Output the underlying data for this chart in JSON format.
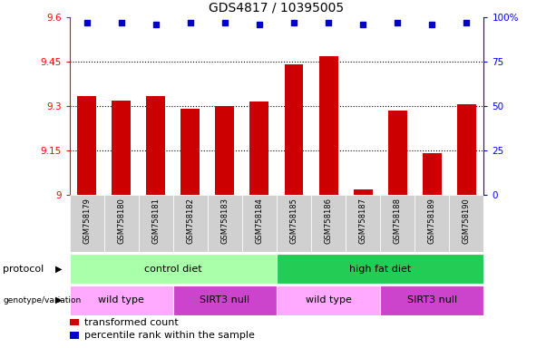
{
  "title": "GDS4817 / 10395005",
  "samples": [
    "GSM758179",
    "GSM758180",
    "GSM758181",
    "GSM758182",
    "GSM758183",
    "GSM758184",
    "GSM758185",
    "GSM758186",
    "GSM758187",
    "GSM758188",
    "GSM758189",
    "GSM758190"
  ],
  "bar_values": [
    9.335,
    9.32,
    9.335,
    9.29,
    9.3,
    9.315,
    9.44,
    9.47,
    9.02,
    9.285,
    9.14,
    9.305
  ],
  "percentile_values": [
    97,
    97,
    96,
    97,
    97,
    96,
    97,
    97,
    96,
    97,
    96,
    97
  ],
  "ylim_left": [
    9.0,
    9.6
  ],
  "yticks_left": [
    9.0,
    9.15,
    9.3,
    9.45,
    9.6
  ],
  "ytick_labels_left": [
    "9",
    "9.15",
    "9.3",
    "9.45",
    "9.6"
  ],
  "ylim_right": [
    0,
    100
  ],
  "yticks_right": [
    0,
    25,
    50,
    75,
    100
  ],
  "ytick_labels_right": [
    "0",
    "25",
    "50",
    "75",
    "100%"
  ],
  "bar_color": "#cc0000",
  "dot_color": "#0000cc",
  "bar_bottom": 9.0,
  "hline_values": [
    9.15,
    9.3,
    9.45
  ],
  "protocol_groups": [
    {
      "text": "control diet",
      "start": 0,
      "end": 6,
      "color": "#aaffaa"
    },
    {
      "text": "high fat diet",
      "start": 6,
      "end": 12,
      "color": "#22cc55"
    }
  ],
  "genotype_groups": [
    {
      "text": "wild type",
      "start": 0,
      "end": 3,
      "color": "#ffaaff"
    },
    {
      "text": "SIRT3 null",
      "start": 3,
      "end": 6,
      "color": "#cc44cc"
    },
    {
      "text": "wild type",
      "start": 6,
      "end": 9,
      "color": "#ffaaff"
    },
    {
      "text": "SIRT3 null",
      "start": 9,
      "end": 12,
      "color": "#cc44cc"
    }
  ],
  "legend_items": [
    {
      "color": "#cc0000",
      "label": "transformed count"
    },
    {
      "color": "#0000cc",
      "label": "percentile rank within the sample"
    }
  ],
  "title_fontsize": 10,
  "tick_fontsize": 7.5,
  "sample_fontsize": 6,
  "row_label_fontsize": 8,
  "legend_fontsize": 8
}
